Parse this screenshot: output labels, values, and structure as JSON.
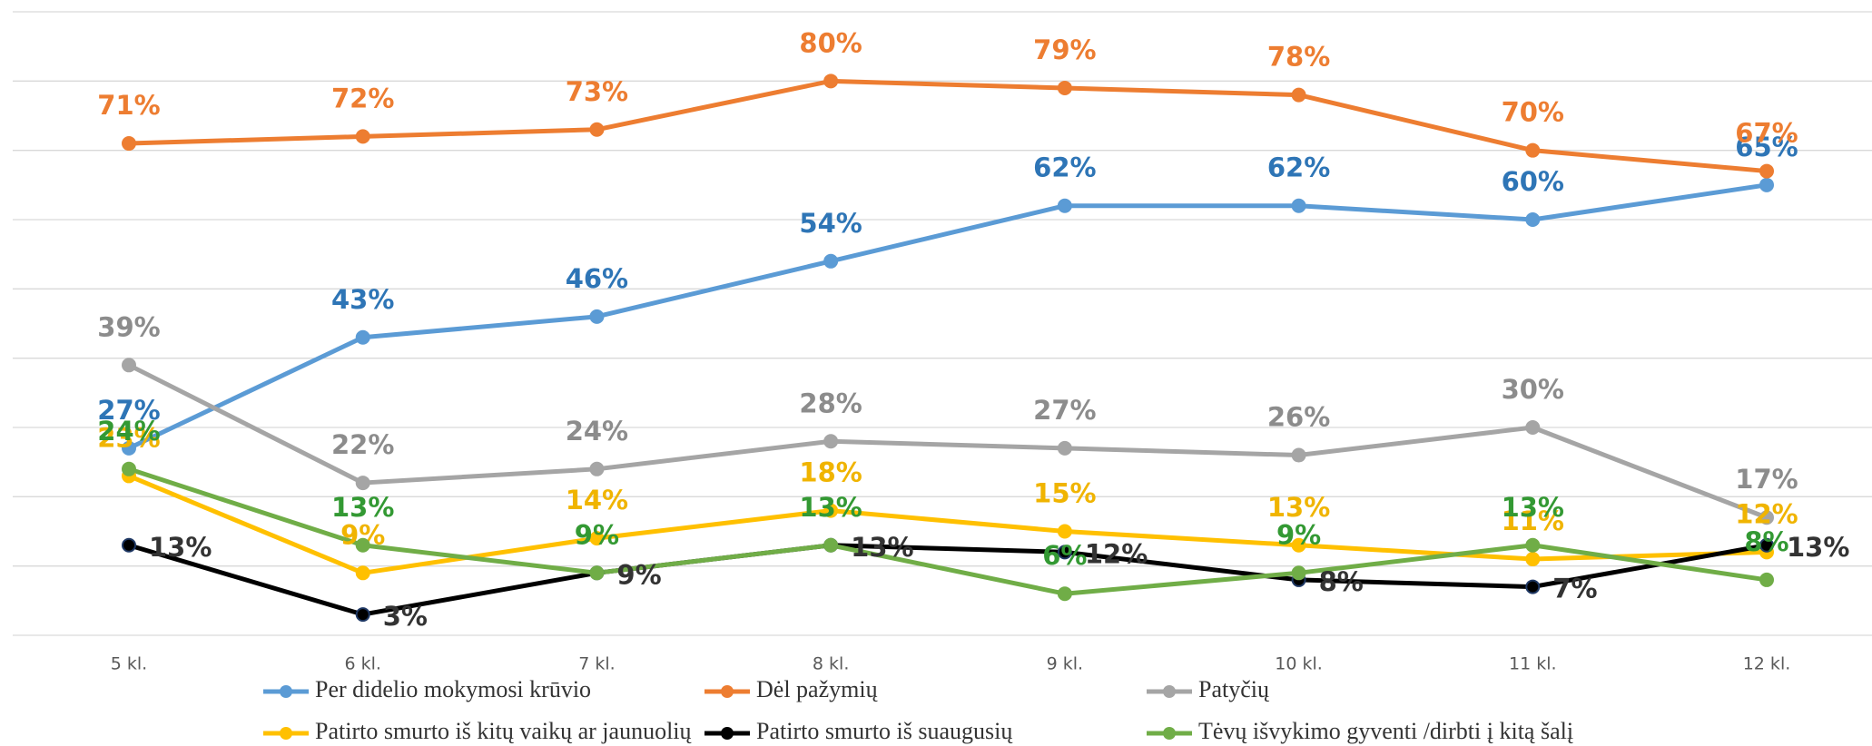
{
  "chart_data": {
    "type": "line",
    "categories": [
      "5 kl.",
      "6 kl.",
      "7 kl.",
      "8 kl.",
      "9 kl.",
      "10 kl.",
      "11 kl.",
      "12 kl."
    ],
    "series": [
      {
        "name": "Per didelio mokymosi krūvio",
        "color": "#5b9bd5",
        "label_color": "#2e75b6",
        "label_position": "above",
        "values": [
          27,
          43,
          46,
          54,
          62,
          62,
          60,
          65
        ],
        "value_labels": [
          "27%",
          "43%",
          "46%",
          "54%",
          "62%",
          "62%",
          "60%",
          "65%"
        ]
      },
      {
        "name": "Dėl pažymių",
        "color": "#ed7d31",
        "label_color": "#ed7d31",
        "label_position": "above",
        "values": [
          71,
          72,
          73,
          80,
          79,
          78,
          70,
          67
        ],
        "value_labels": [
          "71%",
          "72%",
          "73%",
          "80%",
          "79%",
          "78%",
          "70%",
          "67%"
        ]
      },
      {
        "name": "Patyčių",
        "color": "#a5a5a5",
        "label_color": "#8c8c8c",
        "label_position": "above",
        "values": [
          39,
          22,
          24,
          28,
          27,
          26,
          30,
          17
        ],
        "value_labels": [
          "39%",
          "22%",
          "24%",
          "28%",
          "27%",
          "26%",
          "30%",
          "17%"
        ]
      },
      {
        "name": "Patirto smurto iš kitų vaikų ar jaunuolių",
        "color": "#ffc000",
        "label_color": "#f0b400",
        "label_position": "above",
        "values": [
          23,
          9,
          14,
          18,
          15,
          13,
          11,
          12
        ],
        "value_labels": [
          "23%",
          "9%",
          "14%",
          "18%",
          "15%",
          "13%",
          "11%",
          "12%"
        ]
      },
      {
        "name": "Patirto smurto iš suaugusių",
        "color": "#000000",
        "label_color": "#333333",
        "label_position": "right",
        "values": [
          13,
          3,
          9,
          13,
          12,
          8,
          7,
          13
        ],
        "value_labels": [
          "13%",
          "3%",
          "9%",
          "13%",
          "12%",
          "8%",
          "7%",
          "13%"
        ]
      },
      {
        "name": "Tėvų išvykimo gyventi /dirbti į kitą šalį",
        "color": "#70ad47",
        "label_color": "#339933",
        "label_position": "above",
        "values": [
          24,
          13,
          9,
          13,
          6,
          9,
          13,
          8
        ],
        "value_labels": [
          "24%",
          "13%",
          "9%",
          "13%",
          "6%",
          "9%",
          "13%",
          "8%"
        ]
      }
    ],
    "ylim": [
      0,
      90
    ],
    "yticks": [
      0,
      10,
      20,
      30,
      40,
      50,
      60,
      70,
      80,
      90
    ],
    "grid": true
  }
}
